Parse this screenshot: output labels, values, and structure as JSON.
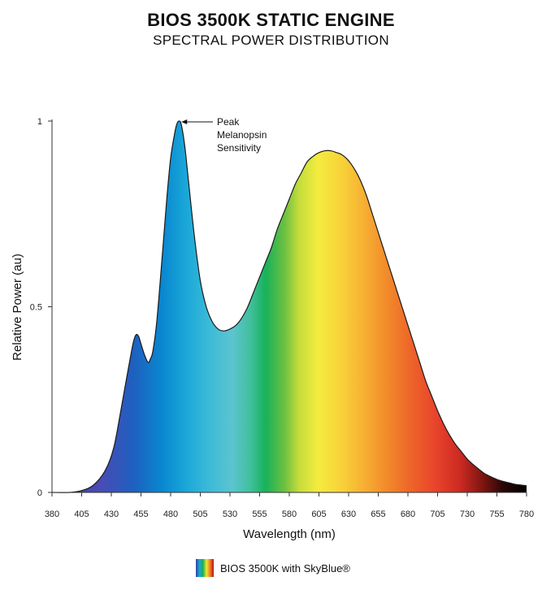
{
  "header": {
    "title": "BIOS 3500K STATIC ENGINE",
    "subtitle": "SPECTRAL POWER DISTRIBUTION"
  },
  "legend": {
    "label": "BIOS 3500K with SkyBlue®"
  },
  "annotation": {
    "lines": [
      "Peak",
      "Melanopsin",
      "Sensitivity"
    ],
    "wavelength": 487,
    "value": 1.0
  },
  "chart_data": {
    "type": "area",
    "title": "BIOS 3500K STATIC ENGINE",
    "subtitle": "SPECTRAL POWER DISTRIBUTION",
    "xlabel": "Wavelength (nm)",
    "ylabel": "Relative Power (au)",
    "xlim": [
      380,
      780
    ],
    "ylim": [
      0,
      1
    ],
    "x_ticks": [
      380,
      405,
      430,
      455,
      480,
      505,
      530,
      555,
      580,
      605,
      630,
      655,
      680,
      705,
      730,
      755,
      780
    ],
    "y_ticks": [
      0,
      0.5,
      1
    ],
    "y_tick_labels": [
      "0",
      "0.5",
      "1"
    ],
    "series": [
      {
        "name": "BIOS 3500K with SkyBlue®",
        "x": [
          380,
          395,
          405,
          415,
          425,
          432,
          438,
          443,
          447,
          449,
          451,
          453,
          455,
          458,
          461,
          463,
          465,
          468,
          471,
          474,
          477,
          480,
          483,
          485,
          487,
          489,
          492,
          495,
          500,
          505,
          510,
          515,
          520,
          525,
          530,
          535,
          540,
          545,
          550,
          555,
          560,
          565,
          570,
          575,
          580,
          585,
          590,
          595,
          600,
          605,
          610,
          615,
          620,
          624,
          628,
          632,
          636,
          640,
          645,
          650,
          655,
          660,
          665,
          670,
          675,
          680,
          685,
          690,
          695,
          700,
          705,
          710,
          715,
          720,
          725,
          730,
          735,
          740,
          745,
          750,
          755,
          760,
          765,
          770,
          775,
          780
        ],
        "y": [
          0,
          0,
          0.005,
          0.02,
          0.06,
          0.12,
          0.22,
          0.31,
          0.38,
          0.41,
          0.425,
          0.42,
          0.4,
          0.37,
          0.35,
          0.36,
          0.38,
          0.45,
          0.56,
          0.68,
          0.8,
          0.9,
          0.96,
          0.99,
          1.0,
          0.99,
          0.93,
          0.84,
          0.69,
          0.57,
          0.5,
          0.46,
          0.44,
          0.435,
          0.44,
          0.45,
          0.47,
          0.5,
          0.54,
          0.58,
          0.62,
          0.66,
          0.71,
          0.75,
          0.79,
          0.83,
          0.86,
          0.89,
          0.905,
          0.915,
          0.92,
          0.92,
          0.915,
          0.91,
          0.9,
          0.885,
          0.865,
          0.84,
          0.8,
          0.75,
          0.7,
          0.65,
          0.6,
          0.55,
          0.5,
          0.45,
          0.4,
          0.35,
          0.3,
          0.26,
          0.22,
          0.185,
          0.155,
          0.13,
          0.11,
          0.09,
          0.075,
          0.062,
          0.05,
          0.042,
          0.035,
          0.03,
          0.026,
          0.022,
          0.02,
          0.018
        ]
      }
    ],
    "grid": false,
    "legend_position": "bottom-center"
  }
}
